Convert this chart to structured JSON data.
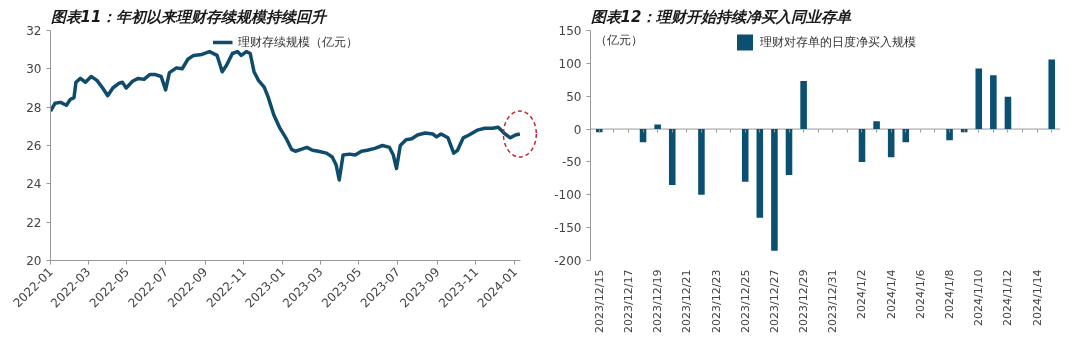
{
  "chart_data": [
    {
      "type": "line",
      "title": "图表11：年初以来理财存续规模持续回升",
      "legend": "top",
      "grid": false,
      "line_style": "solid",
      "marker": "none",
      "x": [
        "2022-01-01",
        "2022-01-08",
        "2022-01-17",
        "2022-01-26",
        "2022-02-01",
        "2022-02-07",
        "2022-02-10",
        "2022-02-17",
        "2022-02-25",
        "2022-03-06",
        "2022-03-15",
        "2022-03-24",
        "2022-04-01",
        "2022-04-09",
        "2022-04-19",
        "2022-04-24",
        "2022-04-30",
        "2022-05-10",
        "2022-05-19",
        "2022-05-28",
        "2022-06-06",
        "2022-06-15",
        "2022-06-24",
        "2022-07-01",
        "2022-07-07",
        "2022-07-18",
        "2022-07-27",
        "2022-08-05",
        "2022-08-14",
        "2022-08-27",
        "2022-09-08",
        "2022-09-20",
        "2022-09-28",
        "2022-10-05",
        "2022-10-14",
        "2022-10-22",
        "2022-10-28",
        "2022-11-05",
        "2022-11-11",
        "2022-11-17",
        "2022-11-24",
        "2022-12-03",
        "2022-12-09",
        "2022-12-18",
        "2022-12-27",
        "2023-01-06",
        "2023-01-15",
        "2023-01-21",
        "2023-01-30",
        "2023-02-08",
        "2023-02-17",
        "2023-02-26",
        "2023-03-11",
        "2023-03-20",
        "2023-03-26",
        "2023-03-31",
        "2023-04-06",
        "2023-04-16",
        "2023-04-25",
        "2023-05-05",
        "2023-05-14",
        "2023-05-26",
        "2023-06-07",
        "2023-06-18",
        "2023-06-24",
        "2023-06-29",
        "2023-07-05",
        "2023-07-14",
        "2023-07-23",
        "2023-08-01",
        "2023-08-13",
        "2023-08-25",
        "2023-08-31",
        "2023-09-07",
        "2023-09-18",
        "2023-09-27",
        "2023-10-03",
        "2023-10-12",
        "2023-10-21",
        "2023-11-03",
        "2023-11-15",
        "2023-11-27",
        "2023-12-06",
        "2023-12-15",
        "2023-12-25",
        "2024-01-02",
        "2024-01-09"
      ],
      "series": [
        {
          "name": "理财存续规模（亿元）",
          "color": "#0f4c6b",
          "values": [
            27.8,
            28.2,
            28.25,
            28.1,
            28.4,
            28.5,
            29.3,
            29.5,
            29.3,
            29.6,
            29.4,
            29.0,
            28.6,
            29.0,
            29.25,
            29.3,
            29.0,
            29.35,
            29.5,
            29.45,
            29.7,
            29.7,
            29.6,
            28.9,
            29.8,
            30.05,
            30.0,
            30.5,
            30.7,
            30.75,
            30.9,
            30.7,
            29.85,
            30.2,
            30.8,
            30.9,
            30.7,
            30.9,
            30.8,
            29.85,
            29.4,
            29.05,
            28.55,
            27.6,
            26.95,
            26.4,
            25.8,
            25.7,
            25.8,
            25.9,
            25.75,
            25.7,
            25.6,
            25.4,
            25.0,
            24.2,
            25.5,
            25.55,
            25.5,
            25.7,
            25.75,
            25.85,
            26.0,
            25.9,
            25.5,
            24.8,
            26.0,
            26.3,
            26.35,
            26.55,
            26.65,
            26.6,
            26.45,
            26.6,
            26.4,
            25.6,
            25.75,
            26.4,
            26.55,
            26.8,
            26.9,
            26.9,
            26.95,
            26.65,
            26.4,
            26.55,
            26.6
          ]
        }
      ],
      "xlim": [
        "2022-01-01",
        "2024-01-10"
      ],
      "xticks": [
        "2022-01",
        "2022-03",
        "2022-05",
        "2022-07",
        "2022-09",
        "2022-11",
        "2023-01",
        "2023-03",
        "2023-05",
        "2023-07",
        "2023-09",
        "2023-11",
        "2024-01"
      ],
      "ylim": [
        20,
        32
      ],
      "yticks": [
        20,
        22,
        24,
        26,
        28,
        30,
        32
      ]
    },
    {
      "type": "bar",
      "title": "图表12：理财开始持续净买入同业存单",
      "ylabel": "（亿元）",
      "legend": "top",
      "grid": false,
      "categories": [
        "2023/12/15",
        null,
        "2023/12/17",
        null,
        "2023/12/19",
        null,
        "2023/12/21",
        null,
        "2023/12/23",
        null,
        "2023/12/25",
        null,
        "2023/12/27",
        null,
        "2023/12/29",
        null,
        "2023/12/31",
        null,
        "2024/1/2",
        null,
        "2024/1/4",
        null,
        "2024/1/6",
        null,
        "2024/1/8",
        null,
        "2024/1/10",
        null,
        "2024/1/12",
        null,
        "2024/1/14",
        null
      ],
      "series": [
        {
          "name": "理财对存单的日度净买入规模",
          "color": "#0b4f71",
          "values": [
            -5,
            null,
            null,
            -20,
            7,
            -85,
            null,
            -100,
            null,
            null,
            -80,
            -135,
            -185,
            -70,
            73,
            null,
            null,
            null,
            -50,
            12,
            -43,
            -20,
            null,
            null,
            -17,
            -5,
            92,
            82,
            49,
            null,
            null,
            106
          ]
        }
      ],
      "ref_lines": [
        {
          "axis": "y",
          "value": 0,
          "color": "#999999",
          "line_style": "solid"
        }
      ],
      "ylim": [
        -200,
        150
      ],
      "yticks": [
        -200,
        -150,
        -100,
        -50,
        0,
        50,
        100,
        150
      ]
    }
  ]
}
